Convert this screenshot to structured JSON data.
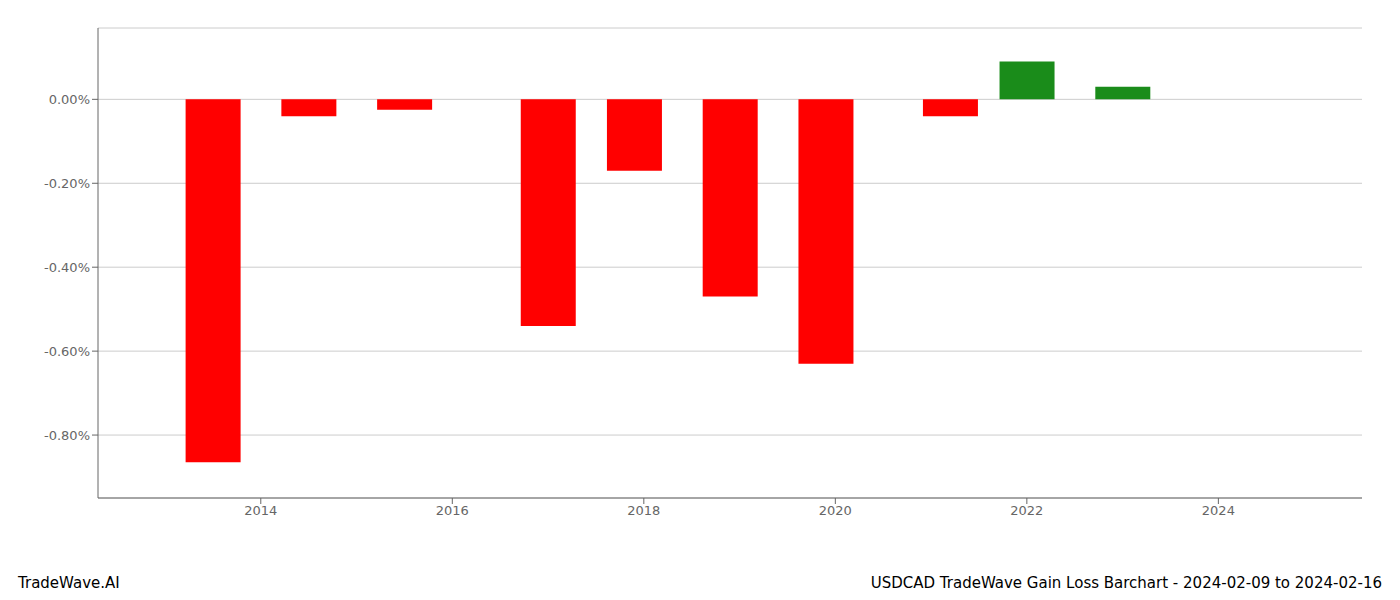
{
  "chart_data": {
    "type": "bar",
    "title": "USDCAD TradeWave Gain Loss Barchart - 2024-02-09 to 2024-02-16",
    "annotations": [
      "TradeWave.AI"
    ],
    "x": [
      2013.5,
      2014.5,
      2015.5,
      2017.0,
      2017.9,
      2018.9,
      2019.9,
      2021.2,
      2022.0,
      2023.0
    ],
    "values": [
      -0.865,
      -0.04,
      -0.025,
      -0.54,
      -0.17,
      -0.47,
      -0.63,
      -0.04,
      0.09,
      0.03
    ],
    "colors": [
      "#ff0000",
      "#ff0000",
      "#ff0000",
      "#ff0000",
      "#ff0000",
      "#ff0000",
      "#ff0000",
      "#ff0000",
      "#1a8c1a",
      "#1a8c1a"
    ],
    "xlim": [
      2012.3,
      2025.5
    ],
    "xticks": [
      2014,
      2016,
      2018,
      2020,
      2022,
      2024
    ],
    "ylim": [
      -0.95,
      0.17
    ],
    "yticks": [
      {
        "value": 0.0,
        "label": "0.00%"
      },
      {
        "value": -0.2,
        "label": "-0.20%"
      },
      {
        "value": -0.4,
        "label": "-0.40%"
      },
      {
        "value": -0.6,
        "label": "-0.60%"
      },
      {
        "value": -0.8,
        "label": "-0.80%"
      }
    ],
    "grid": true
  }
}
